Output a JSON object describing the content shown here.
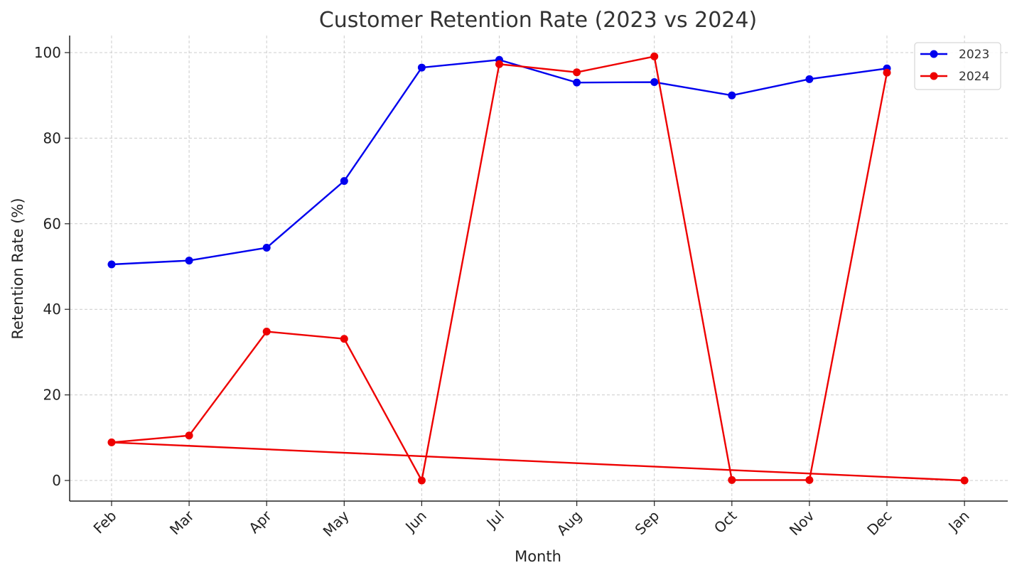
{
  "chart_data": {
    "type": "line",
    "title": "Customer Retention Rate (2023 vs 2024)",
    "xlabel": "Month",
    "ylabel": "Retention Rate (%)",
    "categories": [
      "Feb",
      "Mar",
      "Apr",
      "May",
      "Jun",
      "Jul",
      "Aug",
      "Sep",
      "Oct",
      "Nov",
      "Dec",
      "Jan"
    ],
    "ylim": [
      -5,
      104
    ],
    "yticks": [
      0,
      20,
      40,
      60,
      80,
      100
    ],
    "grid": true,
    "grid_style": "dashed",
    "legend_position": "top-right",
    "series": [
      {
        "name": "2023",
        "color": "#0000ee",
        "points": [
          {
            "x": "Feb",
            "y": 50.5
          },
          {
            "x": "Mar",
            "y": 51.4
          },
          {
            "x": "Apr",
            "y": 54.4
          },
          {
            "x": "May",
            "y": 70.0
          },
          {
            "x": "Jun",
            "y": 96.5
          },
          {
            "x": "Jul",
            "y": 98.3
          },
          {
            "x": "Aug",
            "y": 93.0
          },
          {
            "x": "Sep",
            "y": 93.1
          },
          {
            "x": "Oct",
            "y": 90.0
          },
          {
            "x": "Nov",
            "y": 93.8
          },
          {
            "x": "Dec",
            "y": 96.3
          }
        ]
      },
      {
        "name": "2024",
        "color": "#ee0000",
        "points": [
          {
            "x": "Jan",
            "y": 0.0
          },
          {
            "x": "Feb",
            "y": 8.9
          },
          {
            "x": "Mar",
            "y": 10.5
          },
          {
            "x": "Apr",
            "y": 34.8
          },
          {
            "x": "May",
            "y": 33.1
          },
          {
            "x": "Jun",
            "y": 0.0
          },
          {
            "x": "Jul",
            "y": 97.3
          },
          {
            "x": "Aug",
            "y": 95.4
          },
          {
            "x": "Sep",
            "y": 99.1
          },
          {
            "x": "Oct",
            "y": 0.1
          },
          {
            "x": "Nov",
            "y": 0.1
          },
          {
            "x": "Dec",
            "y": 95.3
          }
        ]
      }
    ]
  }
}
